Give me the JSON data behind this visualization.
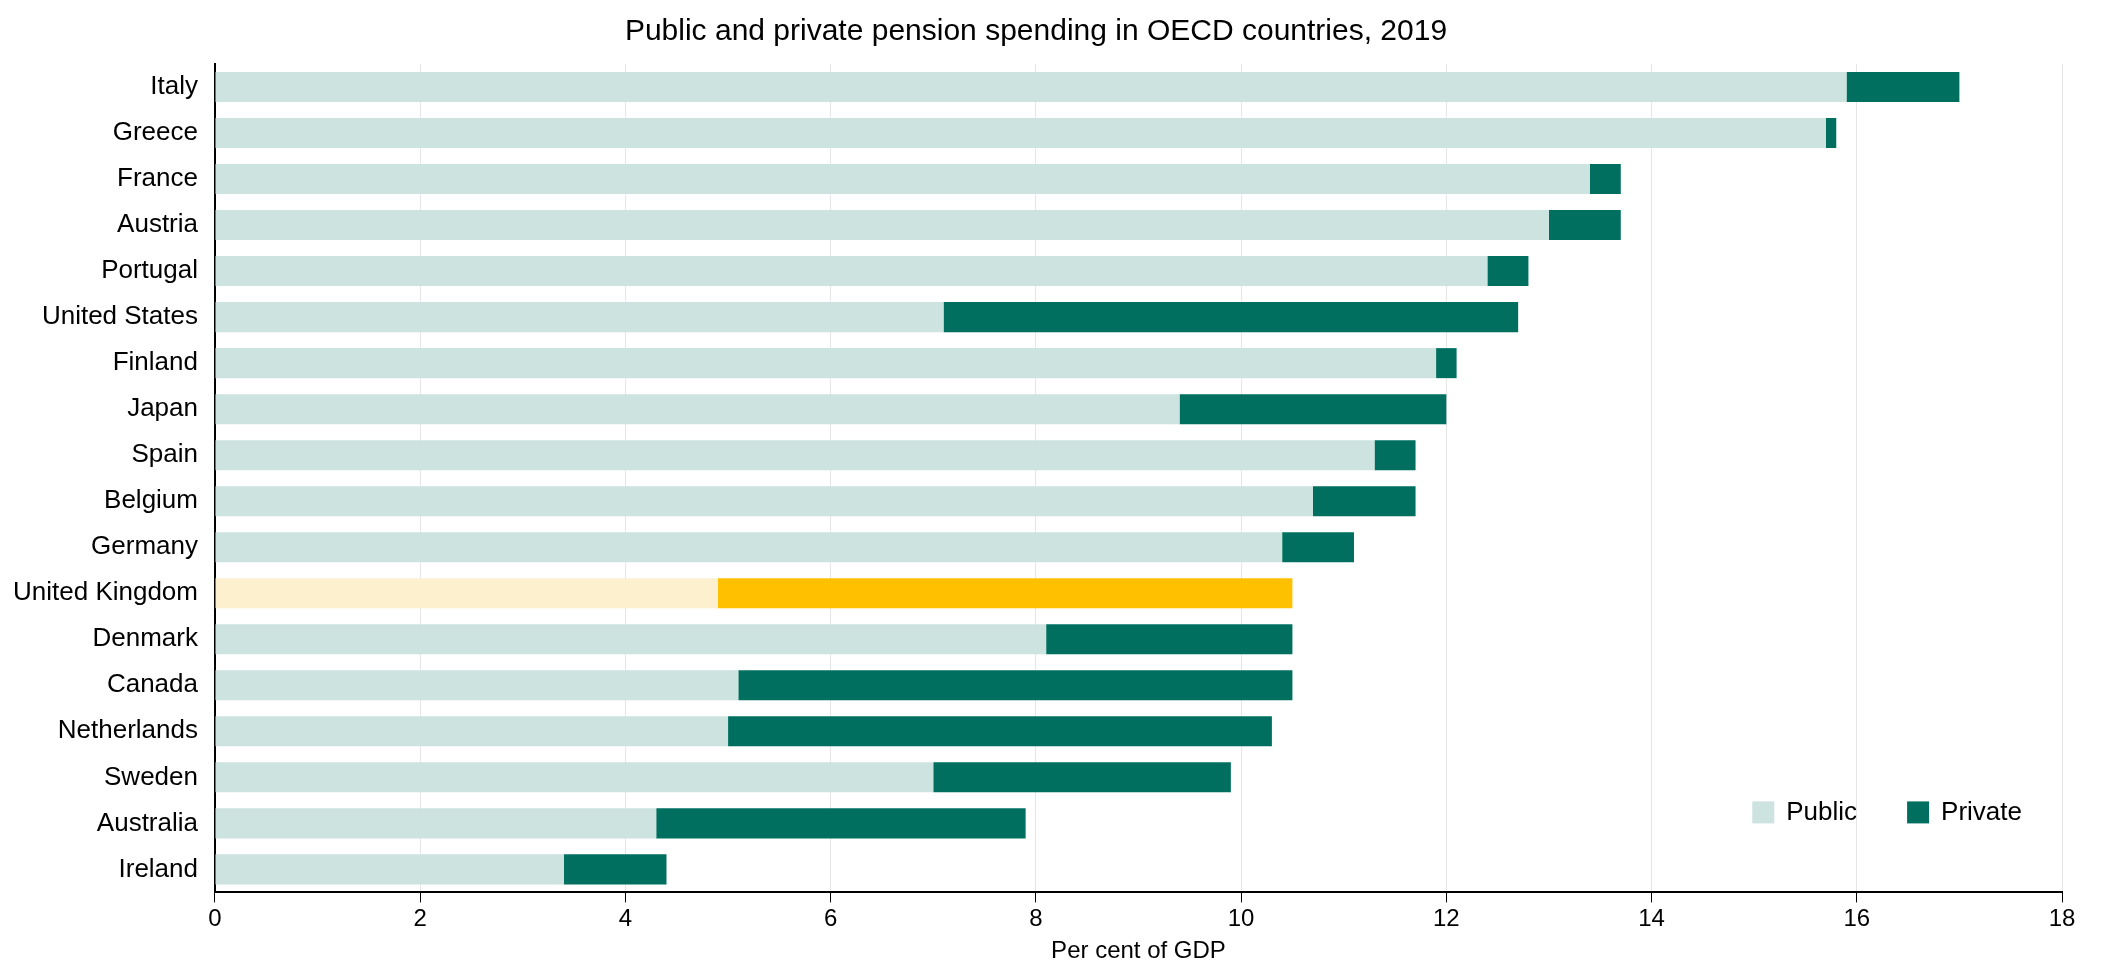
{
  "chart_data": {
    "type": "bar",
    "orientation": "horizontal",
    "stacked": true,
    "title": "Public and private pension spending in OECD countries, 2019",
    "xlabel": "Per cent of GDP",
    "categories": [
      "Italy",
      "Greece",
      "France",
      "Austria",
      "Portugal",
      "United States",
      "Finland",
      "Japan",
      "Spain",
      "Belgium",
      "Germany",
      "United Kingdom",
      "Denmark",
      "Canada",
      "Netherlands",
      "Sweden",
      "Australia",
      "Ireland"
    ],
    "series": [
      {
        "name": "Public",
        "color": "#cde3df",
        "colors": [
          "#cde3df",
          "#cde3df",
          "#cde3df",
          "#cde3df",
          "#cde3df",
          "#cde3df",
          "#cde3df",
          "#cde3df",
          "#cde3df",
          "#cde3df",
          "#cde3df",
          "#fdf0cf",
          "#cde3df",
          "#cde3df",
          "#cde3df",
          "#cde3df",
          "#cde3df",
          "#cde3df"
        ],
        "values": [
          15.9,
          15.7,
          13.4,
          13.0,
          12.4,
          7.1,
          11.9,
          9.4,
          11.3,
          10.7,
          10.4,
          4.9,
          8.1,
          5.1,
          5.0,
          7.0,
          4.3,
          3.4
        ]
      },
      {
        "name": "Private",
        "color": "#006f5f",
        "colors": [
          "#006f5f",
          "#006f5f",
          "#006f5f",
          "#006f5f",
          "#006f5f",
          "#006f5f",
          "#006f5f",
          "#006f5f",
          "#006f5f",
          "#006f5f",
          "#006f5f",
          "#ffc000",
          "#006f5f",
          "#006f5f",
          "#006f5f",
          "#006f5f",
          "#006f5f",
          "#006f5f"
        ],
        "values": [
          1.1,
          0.1,
          0.3,
          0.7,
          0.4,
          5.6,
          0.2,
          2.6,
          0.4,
          1.0,
          0.7,
          5.6,
          2.4,
          5.4,
          5.3,
          2.9,
          3.6,
          1.0
        ]
      }
    ],
    "xlim": [
      0,
      18
    ],
    "xticks": [
      0,
      2,
      4,
      6,
      8,
      10,
      12,
      14,
      16,
      18
    ],
    "grid": "x",
    "legend": "bottom right"
  }
}
